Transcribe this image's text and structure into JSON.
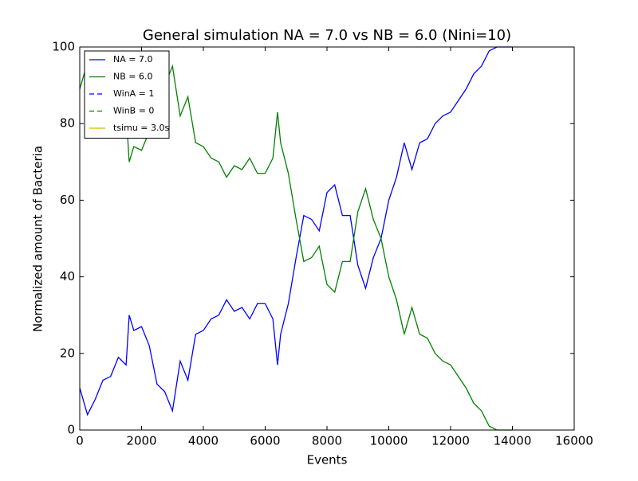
{
  "chart_data": {
    "type": "line",
    "title": "General simulation NA = 7.0 vs NB = 6.0 (Nini=10)",
    "x_label": "Events",
    "y_label": "Normalized amount of Bacteria",
    "x": [
      0,
      250,
      500,
      750,
      1000,
      1250,
      1500,
      1600,
      1750,
      2000,
      2250,
      2500,
      2750,
      3000,
      3250,
      3500,
      3750,
      4000,
      4250,
      4500,
      4750,
      5000,
      5250,
      5500,
      5750,
      6000,
      6250,
      6400,
      6500,
      6750,
      7000,
      7250,
      7500,
      7750,
      8000,
      8250,
      8500,
      8750,
      9000,
      9250,
      9500,
      9750,
      10000,
      10250,
      10500,
      10750,
      11000,
      11250,
      11500,
      11750,
      12000,
      12250,
      12500,
      12750,
      13000,
      13250,
      13500,
      13750,
      14000
    ],
    "series": [
      {
        "name": "NA = 7.0",
        "color": "#0000ff",
        "values": [
          11,
          4,
          8,
          13,
          14,
          19,
          17,
          30,
          26,
          27,
          22,
          12,
          10,
          5,
          18,
          13,
          25,
          26,
          29,
          30,
          34,
          31,
          32,
          29,
          33,
          33,
          29,
          17,
          25,
          33,
          45,
          56,
          55,
          52,
          62,
          64,
          56,
          56,
          43,
          37,
          45,
          50,
          60,
          66,
          75,
          68,
          75,
          76,
          80,
          82,
          83,
          86,
          89,
          93,
          95,
          99,
          100,
          100,
          100
        ]
      },
      {
        "name": "NB = 6.0",
        "color": "#008000",
        "values": [
          89,
          96,
          92,
          87,
          86,
          81,
          83,
          70,
          74,
          73,
          78,
          88,
          90,
          95,
          82,
          87,
          75,
          74,
          71,
          70,
          66,
          69,
          68,
          71,
          67,
          67,
          71,
          83,
          75,
          67,
          55,
          44,
          45,
          48,
          38,
          36,
          44,
          44,
          57,
          63,
          55,
          50,
          40,
          34,
          25,
          32,
          25,
          24,
          20,
          18,
          17,
          14,
          11,
          7,
          5,
          1,
          0,
          0,
          0
        ]
      }
    ],
    "legend_extra": [
      {
        "name": "WinA = 1",
        "color": "#0000ff"
      },
      {
        "name": "WinB = 0",
        "color": "#008000"
      },
      {
        "name": "tsimu = 3.0s",
        "color": "#bfbf00"
      }
    ],
    "xlim": [
      0,
      16000
    ],
    "xticks": [
      0,
      2000,
      4000,
      6000,
      8000,
      10000,
      12000,
      14000,
      16000
    ],
    "ylim": [
      0,
      100
    ],
    "yticks": [
      0,
      20,
      40,
      60,
      80,
      100
    ],
    "legend": "upper left"
  }
}
